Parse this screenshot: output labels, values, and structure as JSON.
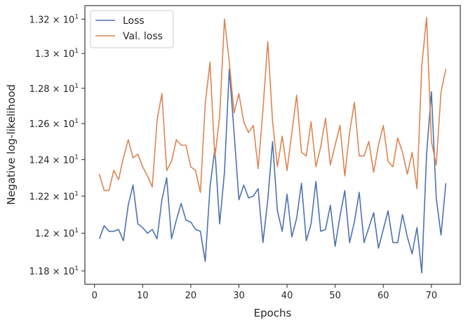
{
  "chart_data": {
    "type": "line",
    "xlabel": "Epochs",
    "ylabel": "Negative log-likelihood",
    "xlim": [
      -2,
      76
    ],
    "ylim": [
      11.73,
      13.28
    ],
    "y_scale": "log",
    "grid": false,
    "legend_position": "top-left",
    "x_ticks": [
      0,
      10,
      20,
      30,
      40,
      50,
      60,
      70
    ],
    "x_tick_labels": [
      "0",
      "10",
      "20",
      "30",
      "40",
      "50",
      "60",
      "70"
    ],
    "y_ticks": [
      {
        "value": 11.8,
        "mantissa": "1.18",
        "times": "×",
        "base": "10",
        "exp": "1"
      },
      {
        "value": 12.0,
        "mantissa": "1.2",
        "times": "×",
        "base": "10",
        "exp": "1"
      },
      {
        "value": 12.2,
        "mantissa": "1.22",
        "times": "×",
        "base": "10",
        "exp": "1"
      },
      {
        "value": 12.4,
        "mantissa": "1.24",
        "times": "×",
        "base": "10",
        "exp": "1"
      },
      {
        "value": 12.6,
        "mantissa": "1.26",
        "times": "×",
        "base": "10",
        "exp": "1"
      },
      {
        "value": 12.8,
        "mantissa": "1.28",
        "times": "×",
        "base": "10",
        "exp": "1"
      },
      {
        "value": 13.0,
        "mantissa": "1.3",
        "times": "×",
        "base": "10",
        "exp": "1"
      },
      {
        "value": 13.2,
        "mantissa": "1.32",
        "times": "×",
        "base": "10",
        "exp": "1"
      }
    ],
    "x": [
      1,
      2,
      3,
      4,
      5,
      6,
      7,
      8,
      9,
      10,
      11,
      12,
      13,
      14,
      15,
      16,
      17,
      18,
      19,
      20,
      21,
      22,
      23,
      24,
      25,
      26,
      27,
      28,
      29,
      30,
      31,
      32,
      33,
      34,
      35,
      36,
      37,
      38,
      39,
      40,
      41,
      42,
      43,
      44,
      45,
      46,
      47,
      48,
      49,
      50,
      51,
      52,
      53,
      54,
      55,
      56,
      57,
      58,
      59,
      60,
      61,
      62,
      63,
      64,
      65,
      66,
      67,
      68,
      69,
      70,
      71,
      72,
      73
    ],
    "series": [
      {
        "name": "Loss",
        "color": "#4c72b0",
        "values": [
          11.97,
          12.04,
          12.01,
          12.01,
          12.02,
          11.96,
          12.15,
          12.26,
          12.05,
          12.03,
          12.0,
          12.02,
          11.97,
          12.18,
          12.3,
          11.97,
          12.07,
          12.16,
          12.07,
          12.06,
          12.02,
          12.01,
          11.85,
          12.25,
          12.46,
          12.05,
          12.33,
          12.91,
          12.55,
          12.18,
          12.26,
          12.19,
          12.2,
          12.24,
          11.95,
          12.18,
          12.5,
          12.12,
          12.01,
          12.21,
          11.98,
          12.08,
          12.27,
          11.96,
          12.05,
          12.28,
          12.01,
          12.02,
          12.15,
          11.93,
          12.09,
          12.23,
          11.95,
          12.06,
          12.22,
          11.95,
          12.03,
          12.11,
          11.92,
          12.02,
          12.12,
          11.95,
          11.95,
          12.1,
          11.98,
          11.89,
          12.03,
          11.79,
          12.43,
          12.78,
          12.19,
          11.99,
          12.27
        ]
      },
      {
        "name": "Val. loss",
        "color": "#dd8452",
        "values": [
          12.32,
          12.23,
          12.23,
          12.34,
          12.29,
          12.41,
          12.51,
          12.41,
          12.43,
          12.36,
          12.31,
          12.25,
          12.62,
          12.77,
          12.34,
          12.39,
          12.51,
          12.48,
          12.48,
          12.36,
          12.34,
          12.22,
          12.71,
          12.95,
          12.41,
          12.64,
          13.2,
          12.95,
          12.66,
          12.77,
          12.61,
          12.55,
          12.59,
          12.35,
          12.68,
          13.07,
          12.61,
          12.36,
          12.53,
          12.34,
          12.55,
          12.76,
          12.44,
          12.42,
          12.61,
          12.36,
          12.47,
          12.63,
          12.37,
          12.48,
          12.59,
          12.31,
          12.55,
          12.72,
          12.42,
          12.42,
          12.5,
          12.33,
          12.48,
          12.59,
          12.39,
          12.36,
          12.52,
          12.44,
          12.32,
          12.44,
          12.24,
          12.93,
          13.21,
          12.5,
          12.37,
          12.78,
          12.91
        ]
      }
    ]
  }
}
